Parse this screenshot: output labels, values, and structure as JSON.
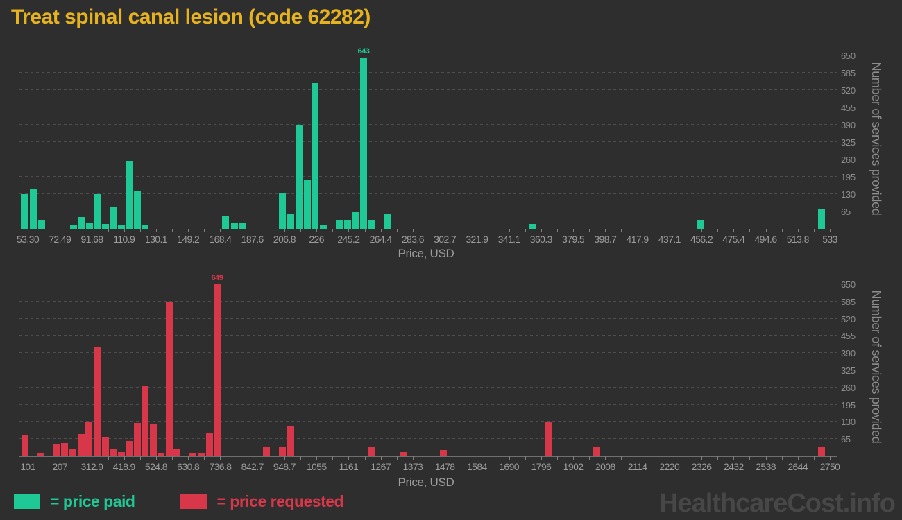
{
  "title": "Treat spinal canal lesion (code 62282)",
  "watermark": "HealthcareCost.info",
  "colors": {
    "background": "#2e2e2e",
    "title": "#e6b31e",
    "paid": "#1ec995",
    "requested": "#d8374a",
    "axis_text": "#9c9c9c",
    "grid": "#4e4e4e",
    "watermark": "#474747"
  },
  "legend": [
    {
      "label": "= price paid",
      "color": "#1ec995"
    },
    {
      "label": "= price requested",
      "color": "#d8374a"
    }
  ],
  "chart_data": [
    {
      "type": "bar",
      "name": "price paid",
      "color": "#1ec995",
      "xlabel": "Price, USD",
      "ylabel": "Number of services provided",
      "ylim": [
        0,
        676
      ],
      "grid": "horizontal-dashed",
      "legend_position": "bottom-left",
      "peak_annotation": "643",
      "y_ticks": [
        650,
        585,
        520,
        455,
        390,
        325,
        260,
        195,
        130,
        65
      ],
      "x_ticks": [
        "53.30",
        "72.49",
        "91.68",
        "110.9",
        "130.1",
        "149.2",
        "168.4",
        "187.6",
        "206.8",
        "226",
        "245.2",
        "264.4",
        "283.6",
        "302.7",
        "321.9",
        "341.1",
        "360.3",
        "379.5",
        "398.7",
        "417.9",
        "437.1",
        "456.2",
        "475.4",
        "494.6",
        "513.8",
        "533"
      ],
      "bars": [
        {
          "price": 54,
          "count": 130,
          "pos": 0.002
        },
        {
          "price": 58,
          "count": 150,
          "pos": 0.0125
        },
        {
          "price": 63,
          "count": 32,
          "pos": 0.0228
        },
        {
          "price": 82,
          "count": 13,
          "pos": 0.0623
        },
        {
          "price": 87,
          "count": 45,
          "pos": 0.0719
        },
        {
          "price": 92,
          "count": 23,
          "pos": 0.0816
        },
        {
          "price": 96,
          "count": 130,
          "pos": 0.0913
        },
        {
          "price": 101,
          "count": 17,
          "pos": 0.1013
        },
        {
          "price": 106,
          "count": 81,
          "pos": 0.1112
        },
        {
          "price": 111,
          "count": 13,
          "pos": 0.1212
        },
        {
          "price": 115,
          "count": 255,
          "pos": 0.1308
        },
        {
          "price": 120,
          "count": 143,
          "pos": 0.1408
        },
        {
          "price": 125,
          "count": 13,
          "pos": 0.1504
        },
        {
          "price": 173,
          "count": 46,
          "pos": 0.2491
        },
        {
          "price": 178,
          "count": 22,
          "pos": 0.26
        },
        {
          "price": 183,
          "count": 22,
          "pos": 0.2705
        },
        {
          "price": 207,
          "count": 133,
          "pos": 0.3189
        },
        {
          "price": 212,
          "count": 58,
          "pos": 0.3294
        },
        {
          "price": 217,
          "count": 390,
          "pos": 0.3393
        },
        {
          "price": 221,
          "count": 182,
          "pos": 0.3496
        },
        {
          "price": 226,
          "count": 545,
          "pos": 0.3595
        },
        {
          "price": 231,
          "count": 13,
          "pos": 0.3694
        },
        {
          "price": 240,
          "count": 35,
          "pos": 0.3893
        },
        {
          "price": 245,
          "count": 30,
          "pos": 0.3993
        },
        {
          "price": 250,
          "count": 63,
          "pos": 0.4089
        },
        {
          "price": 255,
          "count": 643,
          "pos": 0.4189
        },
        {
          "price": 260,
          "count": 33,
          "pos": 0.4289
        },
        {
          "price": 269,
          "count": 54,
          "pos": 0.4482
        },
        {
          "price": 354,
          "count": 17,
          "pos": 0.6263
        },
        {
          "price": 455,
          "count": 34,
          "pos": 0.833
        },
        {
          "price": 528,
          "count": 76,
          "pos": 0.9818
        }
      ]
    },
    {
      "type": "bar",
      "name": "price requested",
      "color": "#d8374a",
      "xlabel": "Price, USD",
      "ylabel": "Number of services provided",
      "ylim": [
        0,
        676
      ],
      "grid": "horizontal-dashed",
      "legend_position": "bottom-left",
      "peak_annotation": "649",
      "y_ticks": [
        650,
        585,
        520,
        455,
        390,
        325,
        260,
        195,
        130,
        65
      ],
      "x_ticks": [
        "101",
        "207",
        "312.9",
        "418.9",
        "524.8",
        "630.8",
        "736.8",
        "842.7",
        "948.7",
        "1055",
        "1161",
        "1267",
        "1373",
        "1478",
        "1584",
        "1690",
        "1796",
        "1902",
        "2008",
        "2114",
        "2220",
        "2326",
        "2432",
        "2538",
        "2644",
        "2750"
      ],
      "bars": [
        {
          "price": 110,
          "count": 80,
          "pos": 0.0026
        },
        {
          "price": 140,
          "count": 13,
          "pos": 0.0216
        },
        {
          "price": 195,
          "count": 45,
          "pos": 0.0415
        },
        {
          "price": 220,
          "count": 50,
          "pos": 0.0515
        },
        {
          "price": 245,
          "count": 28,
          "pos": 0.0614
        },
        {
          "price": 275,
          "count": 83,
          "pos": 0.0714
        },
        {
          "price": 300,
          "count": 130,
          "pos": 0.0813
        },
        {
          "price": 330,
          "count": 415,
          "pos": 0.0913
        },
        {
          "price": 355,
          "count": 70,
          "pos": 0.1013
        },
        {
          "price": 380,
          "count": 25,
          "pos": 0.1112
        },
        {
          "price": 408,
          "count": 15,
          "pos": 0.1209
        },
        {
          "price": 435,
          "count": 57,
          "pos": 0.1308
        },
        {
          "price": 460,
          "count": 125,
          "pos": 0.1405
        },
        {
          "price": 488,
          "count": 265,
          "pos": 0.1504
        },
        {
          "price": 514,
          "count": 120,
          "pos": 0.1604
        },
        {
          "price": 540,
          "count": 13,
          "pos": 0.17
        },
        {
          "price": 567,
          "count": 585,
          "pos": 0.18
        },
        {
          "price": 593,
          "count": 30,
          "pos": 0.1897
        },
        {
          "price": 646,
          "count": 13,
          "pos": 0.2093
        },
        {
          "price": 672,
          "count": 10,
          "pos": 0.2193
        },
        {
          "price": 699,
          "count": 90,
          "pos": 0.2292
        },
        {
          "price": 725,
          "count": 649,
          "pos": 0.2389
        },
        {
          "price": 888,
          "count": 33,
          "pos": 0.2998
        },
        {
          "price": 940,
          "count": 33,
          "pos": 0.3191
        },
        {
          "price": 967,
          "count": 115,
          "pos": 0.3291
        },
        {
          "price": 1234,
          "count": 37,
          "pos": 0.4283
        },
        {
          "price": 1339,
          "count": 15,
          "pos": 0.4676
        },
        {
          "price": 1472,
          "count": 23,
          "pos": 0.5171
        },
        {
          "price": 1820,
          "count": 130,
          "pos": 0.6459
        },
        {
          "price": 1978,
          "count": 37,
          "pos": 0.7056
        },
        {
          "price": 2722,
          "count": 35,
          "pos": 0.9821
        }
      ]
    }
  ]
}
